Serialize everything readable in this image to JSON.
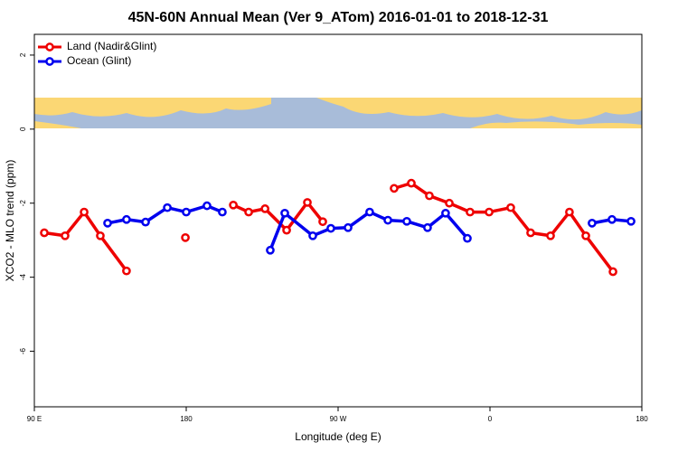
{
  "chart_data": {
    "type": "line",
    "title": "45N-60N Annual Mean (Ver 9_ATom)   2016-01-01 to 2018-12-31",
    "xlabel": "Longitude (deg E)",
    "ylabel": "XCO2 - MLO trend (ppm)",
    "xlim": [
      90,
      450
    ],
    "xticks": [
      {
        "value": 90,
        "label": "90 E"
      },
      {
        "value": 180,
        "label": "180"
      },
      {
        "value": 270,
        "label": "90 W"
      },
      {
        "value": 360,
        "label": "0"
      },
      {
        "value": 450,
        "label": "180"
      }
    ],
    "ylim": [
      -7.5,
      2.56
    ],
    "yticks": [
      2,
      0,
      -2,
      -4,
      -6
    ],
    "legend": "top-left",
    "series": [
      {
        "name": "Land (Nadir&Glint)",
        "color": "#ee0000",
        "x": [
          95.9,
          108.2,
          119.5,
          129.1,
          144.6,
          null,
          179.5,
          null,
          207.9,
          217.0,
          226.7,
          239.5,
          251.8,
          260.9,
          null,
          303.2,
          313.4,
          324.1,
          335.9,
          348.2,
          359.5,
          372.3,
          384.1,
          395.9,
          407.1,
          416.8,
          432.9
        ],
        "values": [
          -2.8,
          -2.88,
          -2.24,
          -2.88,
          -3.83,
          null,
          -2.93,
          null,
          -2.05,
          -2.24,
          -2.15,
          -2.73,
          -1.98,
          -2.5,
          null,
          -1.6,
          -1.46,
          -1.8,
          -2.0,
          -2.24,
          -2.24,
          -2.12,
          -2.8,
          -2.88,
          -2.24,
          -2.88,
          -3.85
        ]
      },
      {
        "name": "Ocean (Glint)",
        "color": "#0000ee",
        "x": [
          133.4,
          144.6,
          155.9,
          168.8,
          180.0,
          192.3,
          201.4,
          null,
          229.8,
          238.4,
          255.0,
          265.7,
          275.9,
          288.7,
          299.5,
          310.7,
          323.0,
          333.7,
          346.6,
          null,
          420.5,
          432.3,
          443.6
        ],
        "values": [
          -2.54,
          -2.44,
          -2.51,
          -2.12,
          -2.24,
          -2.07,
          -2.24,
          null,
          -3.27,
          -2.27,
          -2.88,
          -2.68,
          -2.66,
          -2.24,
          -2.46,
          -2.49,
          -2.66,
          -2.27,
          -2.95,
          null,
          -2.54,
          -2.44,
          -2.49
        ]
      }
    ]
  }
}
